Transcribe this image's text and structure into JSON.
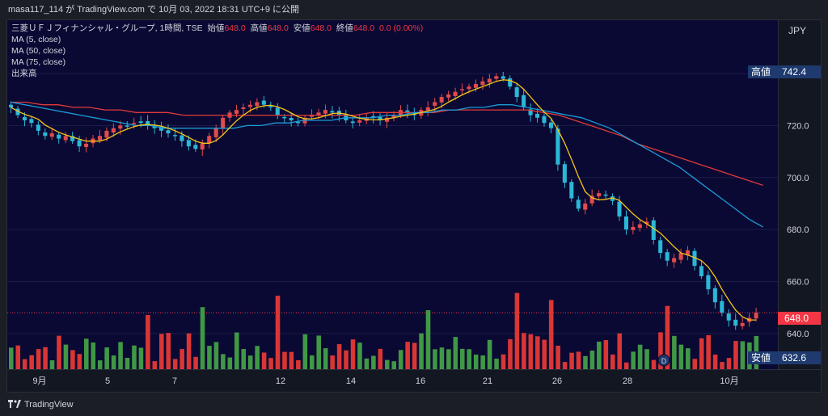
{
  "header": {
    "caption": "masa117_114 が TradingView.com で 10月 03, 2022 18:31 UTC+9 に公開"
  },
  "legend": {
    "symbol": "三菱ＵＦＪフィナンシャル・グループ, 1時間, TSE",
    "open_label": "始値",
    "open_value": "648.0",
    "high_label": "高値",
    "high_value": "648.0",
    "low_label": "安値",
    "low_value": "648.0",
    "close_label": "終値",
    "close_value": "648.0",
    "change": "0.0 (0.00%)",
    "indicators": [
      "MA (5, close)",
      "MA (50, close)",
      "MA (75, close)",
      "出来高"
    ]
  },
  "price_axis": {
    "currency": "JPY",
    "ticks": [
      "720.0",
      "700.0",
      "680.0",
      "660.0",
      "640.0"
    ],
    "high_label": "高値",
    "high_value": "742.4",
    "last_value": "648.0",
    "low_label": "安値",
    "low_value": "632.6"
  },
  "time_axis": {
    "ticks": [
      "9月",
      "5",
      "7",
      "12",
      "14",
      "16",
      "21",
      "26",
      "28",
      "10月"
    ]
  },
  "footer": {
    "brand": "TradingView"
  },
  "colors": {
    "up": "#26a69a",
    "down": "#ef5350",
    "ma5": "#f5c518",
    "ma50": "#1a9bd7",
    "ma75": "#e03a3a",
    "volume_up": "#43a047",
    "volume_down": "#e53935",
    "plot_bg": "#0a0933"
  },
  "chart_data": {
    "type": "candlestick",
    "interval": "1時間",
    "y_range": [
      630,
      745
    ],
    "close_approx": [
      727,
      724,
      722,
      721,
      718,
      716,
      717,
      715,
      716,
      714,
      712,
      713,
      715,
      716,
      718,
      719,
      720,
      720,
      721,
      721,
      720,
      719,
      718,
      717,
      716,
      714,
      712,
      711,
      713,
      716,
      719,
      723,
      725,
      726,
      727,
      728,
      729,
      728,
      727,
      724,
      723,
      722,
      721,
      723,
      724,
      725,
      726,
      725,
      724,
      722,
      721,
      722,
      723,
      723,
      722,
      723,
      724,
      726,
      725,
      724,
      726,
      727,
      729,
      731,
      732,
      733,
      734,
      735,
      736,
      737,
      738,
      739,
      738,
      735,
      731,
      727,
      724,
      723,
      721,
      719,
      705,
      698,
      692,
      688,
      690,
      693,
      694,
      693,
      691,
      685,
      680,
      681,
      682,
      683,
      676,
      671,
      668,
      669,
      671,
      672,
      666,
      662,
      657,
      652,
      648,
      645,
      643,
      644,
      646,
      648
    ],
    "ma50_approx": [
      729,
      728,
      727,
      726,
      725,
      724,
      723,
      722,
      721,
      720,
      720,
      719,
      719,
      719,
      719,
      719,
      719,
      720,
      720,
      721,
      721,
      722,
      722,
      722,
      723,
      723,
      723,
      724,
      724,
      725,
      725,
      726,
      726,
      727,
      727,
      728,
      728,
      727,
      726,
      725,
      724,
      723,
      721,
      719,
      716,
      713,
      710,
      707,
      704,
      700,
      696,
      692,
      688,
      684,
      681
    ],
    "ma75_approx": [
      729,
      729,
      728,
      728,
      727,
      727,
      726,
      726,
      725,
      725,
      725,
      724,
      724,
      724,
      724,
      724,
      724,
      724,
      724,
      724,
      724,
      724,
      724,
      725,
      725,
      725,
      725,
      725,
      726,
      726,
      726,
      726,
      726,
      726,
      725,
      724,
      722,
      720,
      718,
      716,
      713,
      711,
      709,
      707,
      705,
      703,
      701,
      699,
      697
    ]
  }
}
